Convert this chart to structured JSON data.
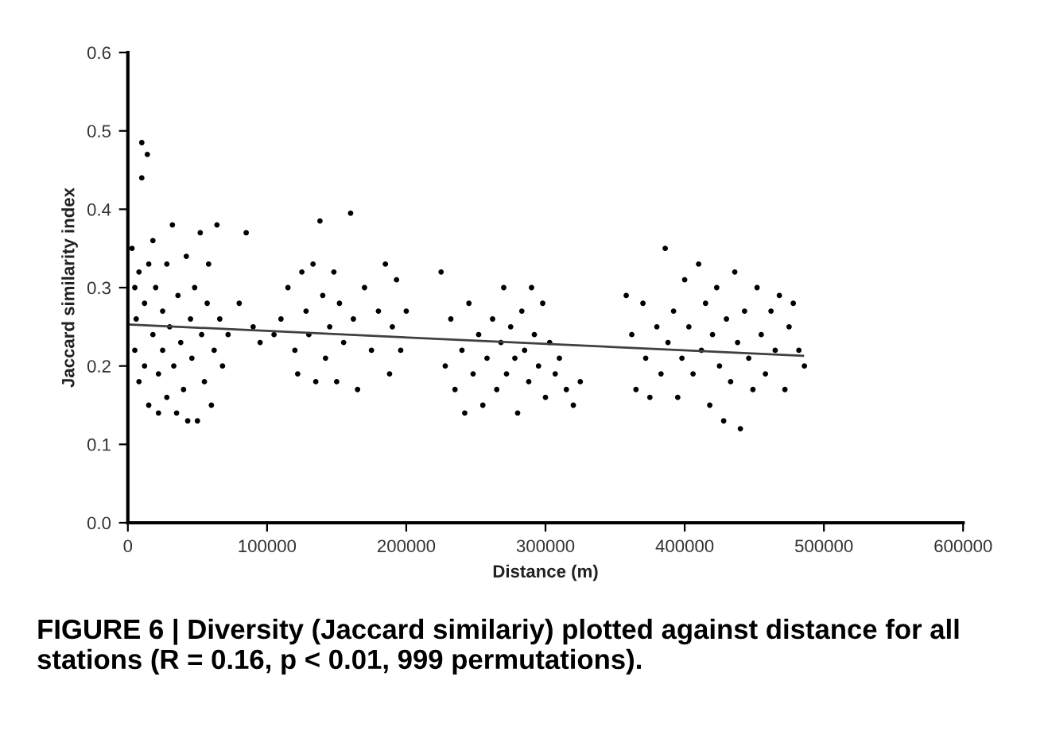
{
  "chart_data": {
    "type": "scatter",
    "xlabel": "Distance (m)",
    "ylabel": "Jaccard similarity index",
    "annotations": [
      "FIGURE 6 | Diversity (Jaccard similariy) plotted against distance for all stations (R = 0.16, p < 0.01, 999 permutations)."
    ],
    "xlim": [
      0,
      600000
    ],
    "xticks": [
      0,
      100000,
      200000,
      300000,
      400000,
      500000,
      600000
    ],
    "ylim": [
      0,
      0.6
    ],
    "yticks": [
      {
        "value": 0,
        "label": "0.0"
      },
      {
        "value": 0.1,
        "label": "0.1"
      },
      {
        "value": 0.2,
        "label": "0.2"
      },
      {
        "value": 0.3,
        "label": "0.3"
      },
      {
        "value": 0.4,
        "label": "0.4"
      },
      {
        "value": 0.5,
        "label": "0.5"
      },
      {
        "value": 0.6,
        "label": "0.6"
      }
    ],
    "grid": false,
    "marker": "circle",
    "series": [
      {
        "color": "#000000",
        "x": [
          3000,
          5000,
          5000,
          6000,
          8000,
          8000,
          10000,
          10000,
          12000,
          12000,
          14000,
          15000,
          15000,
          18000,
          18000,
          20000,
          22000,
          22000,
          25000,
          25000,
          28000,
          28000,
          30000,
          32000,
          33000,
          35000,
          36000,
          38000,
          40000,
          42000,
          43000,
          45000,
          46000,
          48000,
          50000,
          52000,
          53000,
          55000,
          57000,
          58000,
          60000,
          62000,
          64000,
          66000,
          68000,
          72000,
          80000,
          85000,
          90000,
          95000,
          105000,
          110000,
          115000,
          120000,
          122000,
          125000,
          128000,
          130000,
          133000,
          135000,
          138000,
          140000,
          142000,
          145000,
          148000,
          150000,
          152000,
          155000,
          160000,
          162000,
          165000,
          170000,
          175000,
          180000,
          185000,
          188000,
          190000,
          193000,
          196000,
          200000,
          225000,
          228000,
          232000,
          235000,
          240000,
          242000,
          245000,
          248000,
          252000,
          255000,
          258000,
          262000,
          265000,
          268000,
          270000,
          272000,
          275000,
          278000,
          280000,
          283000,
          285000,
          288000,
          290000,
          292000,
          295000,
          298000,
          300000,
          303000,
          307000,
          310000,
          315000,
          320000,
          325000,
          358000,
          362000,
          365000,
          370000,
          372000,
          375000,
          380000,
          383000,
          386000,
          388000,
          392000,
          395000,
          398000,
          400000,
          403000,
          406000,
          410000,
          412000,
          415000,
          418000,
          420000,
          423000,
          425000,
          428000,
          430000,
          433000,
          436000,
          438000,
          440000,
          443000,
          446000,
          449000,
          452000,
          455000,
          458000,
          462000,
          465000,
          468000,
          472000,
          475000,
          478000,
          482000,
          486000
        ],
        "values": [
          0.35,
          0.3,
          0.22,
          0.26,
          0.32,
          0.18,
          0.485,
          0.44,
          0.28,
          0.2,
          0.47,
          0.33,
          0.15,
          0.24,
          0.36,
          0.3,
          0.19,
          0.14,
          0.27,
          0.22,
          0.33,
          0.16,
          0.25,
          0.38,
          0.2,
          0.14,
          0.29,
          0.23,
          0.17,
          0.34,
          0.13,
          0.26,
          0.21,
          0.3,
          0.13,
          0.37,
          0.24,
          0.18,
          0.28,
          0.33,
          0.15,
          0.22,
          0.38,
          0.26,
          0.2,
          0.24,
          0.28,
          0.37,
          0.25,
          0.23,
          0.24,
          0.26,
          0.3,
          0.22,
          0.19,
          0.32,
          0.27,
          0.24,
          0.33,
          0.18,
          0.385,
          0.29,
          0.21,
          0.25,
          0.32,
          0.18,
          0.28,
          0.23,
          0.395,
          0.26,
          0.17,
          0.3,
          0.22,
          0.27,
          0.33,
          0.19,
          0.25,
          0.31,
          0.22,
          0.27,
          0.32,
          0.2,
          0.26,
          0.17,
          0.22,
          0.14,
          0.28,
          0.19,
          0.24,
          0.15,
          0.21,
          0.26,
          0.17,
          0.23,
          0.3,
          0.19,
          0.25,
          0.21,
          0.14,
          0.27,
          0.22,
          0.18,
          0.3,
          0.24,
          0.2,
          0.28,
          0.16,
          0.23,
          0.19,
          0.21,
          0.17,
          0.15,
          0.18,
          0.29,
          0.24,
          0.17,
          0.28,
          0.21,
          0.16,
          0.25,
          0.19,
          0.35,
          0.23,
          0.27,
          0.16,
          0.21,
          0.31,
          0.25,
          0.19,
          0.33,
          0.22,
          0.28,
          0.15,
          0.24,
          0.3,
          0.2,
          0.13,
          0.26,
          0.18,
          0.32,
          0.23,
          0.12,
          0.27,
          0.21,
          0.17,
          0.3,
          0.24,
          0.19,
          0.27,
          0.22,
          0.29,
          0.17,
          0.25,
          0.28,
          0.22,
          0.2
        ]
      },
      {
        "type": "line",
        "color": "#404040",
        "marker": "none",
        "x": [
          0,
          485000
        ],
        "values": [
          0.253,
          0.213
        ]
      }
    ]
  }
}
